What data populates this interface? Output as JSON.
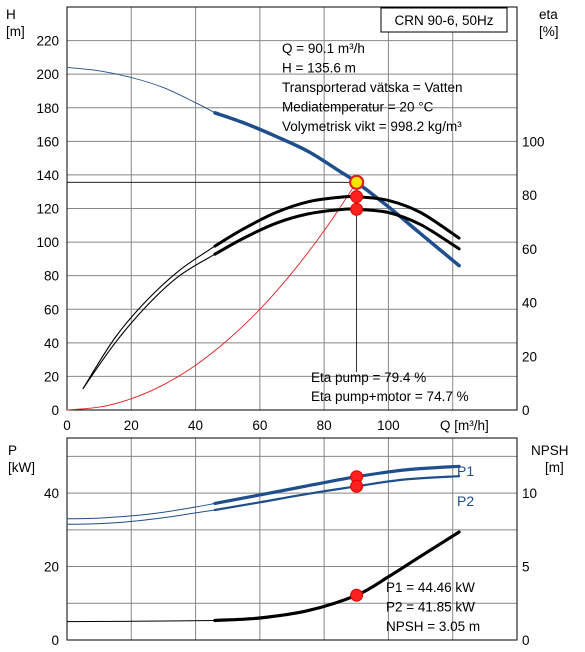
{
  "chart_data": [
    {
      "type": "line",
      "title": "CRN 90-6, 50Hz",
      "xlabel": "Q [m³/h]",
      "ylabel": "H\n[m]",
      "y2label": "eta\n[%]",
      "xlim": [
        0,
        140
      ],
      "ylim": [
        0,
        240
      ],
      "y2lim": [
        0,
        150
      ],
      "x_ticks": [
        0,
        20,
        40,
        60,
        80,
        100
      ],
      "y_ticks": [
        0,
        20,
        40,
        60,
        80,
        100,
        120,
        140,
        160,
        180,
        200,
        220
      ],
      "y2_ticks": [
        0,
        20,
        40,
        60,
        80,
        100
      ],
      "grid": true,
      "info_lines": [
        "Q = 90.1 m³/h",
        "H = 135.6 m",
        "Transporterad vätska = Vatten",
        "Mediatemperatur = 20 °C",
        "Volymetrisk vikt = 998.2 kg/m³"
      ],
      "eta_lines": [
        "Eta pump = 79.4 %",
        "Eta pump+motor = 74.7 %"
      ],
      "series": [
        {
          "key": "head_thin",
          "axis": "left",
          "color": "#1f4e8c",
          "x": [
            0,
            10,
            20,
            30,
            40,
            46
          ],
          "y": [
            204,
            202,
            198,
            192,
            183,
            177
          ]
        },
        {
          "key": "head",
          "axis": "left",
          "color": "#1f4e8c",
          "x": [
            46,
            55,
            65,
            75,
            85,
            90.1,
            100,
            110,
            122
          ],
          "y": [
            177,
            171,
            163,
            154,
            142,
            135.6,
            121,
            105,
            86
          ]
        },
        {
          "key": "system",
          "axis": "left",
          "color": "#e02020",
          "x": [
            0,
            10,
            20,
            30,
            40,
            50,
            60,
            70,
            80,
            90.1
          ],
          "y": [
            0,
            1.7,
            6.7,
            15,
            26.7,
            41.7,
            60,
            81.7,
            106.7,
            135.6
          ]
        },
        {
          "key": "eta_pump_thin",
          "axis": "right",
          "color": "#000000",
          "x": [
            5,
            15,
            25,
            35,
            46
          ],
          "y": [
            8,
            27,
            41,
            52,
            61
          ]
        },
        {
          "key": "eta_pump",
          "axis": "right",
          "color": "#000000",
          "x": [
            46,
            55,
            65,
            75,
            85,
            90.1,
            100,
            110,
            122
          ],
          "y": [
            61,
            67.5,
            73.5,
            77.5,
            79.2,
            79.4,
            78,
            73.5,
            64
          ]
        },
        {
          "key": "eta_total_thin",
          "axis": "right",
          "color": "#000000",
          "x": [
            5,
            15,
            25,
            35,
            46
          ],
          "y": [
            8,
            25,
            39,
            50,
            58
          ]
        },
        {
          "key": "eta_total",
          "axis": "right",
          "color": "#000000",
          "x": [
            46,
            55,
            65,
            75,
            85,
            90.1,
            100,
            110,
            122
          ],
          "y": [
            58,
            64,
            69.5,
            73,
            74.6,
            74.7,
            73.5,
            69,
            60
          ]
        }
      ],
      "operating_point": {
        "x": 90.1,
        "y": 135.6
      }
    },
    {
      "type": "line",
      "xlabel": "",
      "ylabel": "P\n[kW]",
      "y2label": "NPSH\n[m]",
      "xlim": [
        0,
        140
      ],
      "ylim": [
        0,
        55
      ],
      "y2lim": [
        0,
        13.75
      ],
      "y_ticks": [
        0,
        20,
        40
      ],
      "y2_ticks": [
        0,
        5,
        10
      ],
      "grid": true,
      "info_lines": [
        "P1 = 44.46 kW",
        "P2 = 41.85 kW",
        "NPSH = 3.05 m"
      ],
      "curve_labels": [
        "P1",
        "P2"
      ],
      "series": [
        {
          "key": "p1_thin",
          "axis": "left",
          "color": "#1f4e8c",
          "x": [
            0,
            10,
            20,
            30,
            40,
            46
          ],
          "y": [
            33,
            33.2,
            33.8,
            34.8,
            36.2,
            37.2
          ]
        },
        {
          "key": "p1",
          "axis": "left",
          "color": "#1f4e8c",
          "x": [
            46,
            60,
            75,
            90.1,
            105,
            122
          ],
          "y": [
            37.2,
            39.5,
            42,
            44.46,
            46.3,
            47.3
          ]
        },
        {
          "key": "p2_thin",
          "axis": "left",
          "color": "#1f4e8c",
          "x": [
            0,
            10,
            20,
            30,
            40,
            46
          ],
          "y": [
            31.5,
            31.7,
            32.3,
            33.3,
            34.6,
            35.4
          ]
        },
        {
          "key": "p2",
          "axis": "left",
          "color": "#1f4e8c",
          "x": [
            46,
            60,
            75,
            90.1,
            105,
            122
          ],
          "y": [
            35.4,
            37.5,
            39.8,
            41.85,
            43.7,
            44.6
          ]
        },
        {
          "key": "npsh_thin",
          "axis": "right",
          "color": "#000000",
          "x": [
            0,
            20,
            46
          ],
          "y": [
            1.25,
            1.27,
            1.33
          ]
        },
        {
          "key": "npsh",
          "axis": "right",
          "color": "#000000",
          "x": [
            46,
            60,
            75,
            90.1,
            100,
            110,
            122
          ],
          "y": [
            1.33,
            1.5,
            2.0,
            3.05,
            4.3,
            5.7,
            7.35
          ]
        }
      ],
      "operating_points": [
        {
          "axis": "left",
          "x": 90.1,
          "y": 44.46
        },
        {
          "axis": "left",
          "x": 90.1,
          "y": 41.85
        },
        {
          "axis": "right",
          "x": 90.1,
          "y": 3.05
        }
      ]
    }
  ]
}
